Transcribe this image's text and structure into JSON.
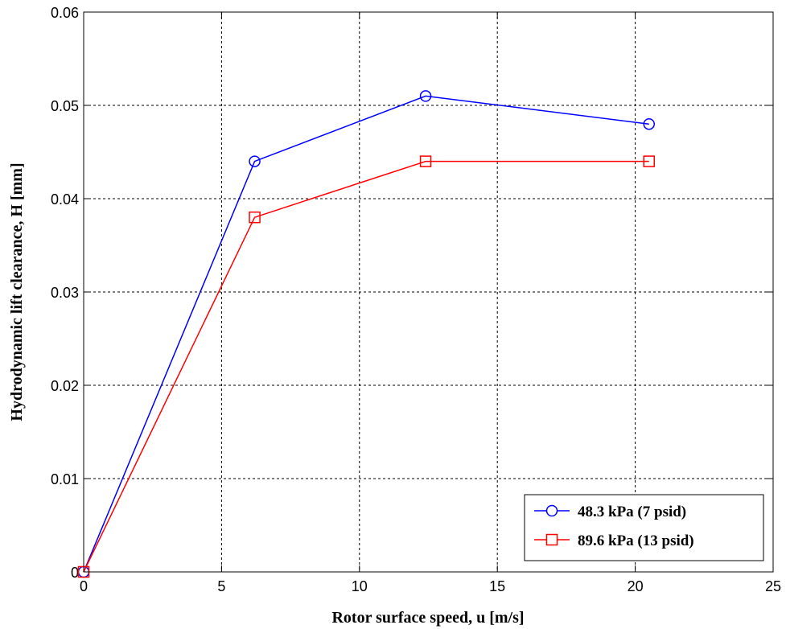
{
  "chart_data": {
    "type": "line",
    "title": "",
    "xlabel": "Rotor surface speed, u [m/s]",
    "ylabel": "Hydrodynamic lift clearance, H [mm]",
    "xlim": [
      0,
      25
    ],
    "ylim": [
      0,
      0.06
    ],
    "xticks": [
      0,
      5,
      10,
      15,
      20,
      25
    ],
    "xtick_labels": [
      "0",
      "5",
      "10",
      "15",
      "20",
      "25"
    ],
    "yticks": [
      0,
      0.01,
      0.02,
      0.03,
      0.04,
      0.05,
      0.06
    ],
    "ytick_labels": [
      "0",
      "0.01",
      "0.02",
      "0.03",
      "0.04",
      "0.05",
      "0.06"
    ],
    "grid": true,
    "legend_position": "bottom-right",
    "series": [
      {
        "name": "48.3 kPa (7 psid)",
        "color": "#0000ff",
        "marker": "circle",
        "x": [
          0,
          6.2,
          12.4,
          20.5
        ],
        "y": [
          0,
          0.044,
          0.051,
          0.048
        ]
      },
      {
        "name": "89.6 kPa (13 psid)",
        "color": "#ff0000",
        "marker": "square",
        "x": [
          0,
          6.2,
          12.4,
          20.5
        ],
        "y": [
          0,
          0.038,
          0.044,
          0.044
        ]
      }
    ]
  }
}
